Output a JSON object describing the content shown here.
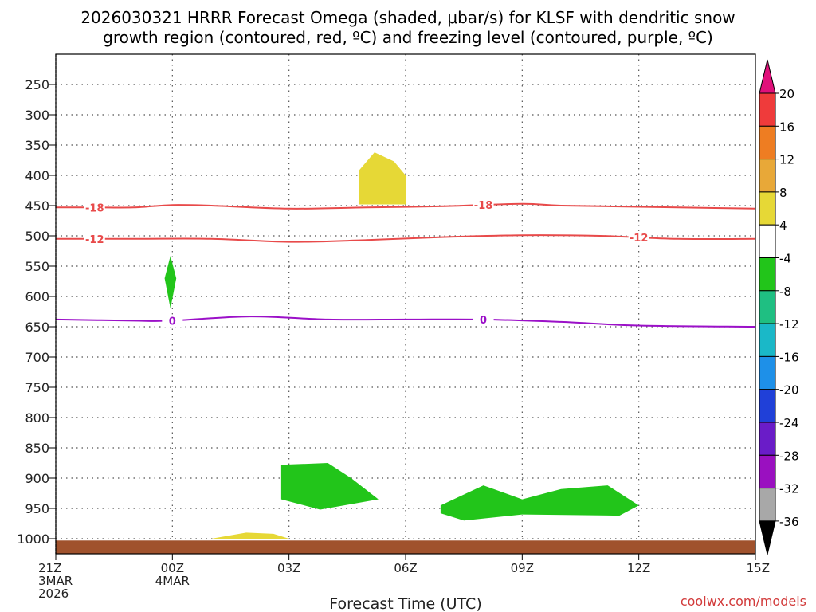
{
  "chart_data": {
    "type": "time-height contour",
    "title_line1": "2026030321 HRRR Forecast Omega (shaded, μbar/s) for KLSF with dendritic snow",
    "title_line2": "growth region (contoured, red, ºC) and freezing level (contoured, purple, ºC)",
    "xlabel": "Forecast Time (UTC)",
    "credit": "coolwx.com/models",
    "x_range_hours": [
      0,
      18
    ],
    "y_range_hpa": [
      200,
      1025
    ],
    "x_ticks": [
      {
        "hour": 0,
        "lines": [
          "21Z",
          "3MAR",
          "2026"
        ]
      },
      {
        "hour": 3,
        "lines": [
          "00Z",
          "4MAR"
        ]
      },
      {
        "hour": 6,
        "lines": [
          "03Z"
        ]
      },
      {
        "hour": 9,
        "lines": [
          "06Z"
        ]
      },
      {
        "hour": 12,
        "lines": [
          "09Z"
        ]
      },
      {
        "hour": 15,
        "lines": [
          "12Z"
        ]
      },
      {
        "hour": 18,
        "lines": [
          "15Z"
        ]
      }
    ],
    "y_ticks": [
      250,
      300,
      350,
      400,
      450,
      500,
      550,
      600,
      650,
      700,
      750,
      800,
      850,
      900,
      950,
      1000
    ],
    "colorbar": {
      "labels": [
        "20",
        "16",
        "12",
        "8",
        "4",
        "-4",
        "-8",
        "-12",
        "-16",
        "-20",
        "-24",
        "-28",
        "-32",
        "-36"
      ],
      "segments": [
        {
          "from": 20,
          "to": 16,
          "color": "#ef3b3b"
        },
        {
          "from": 16,
          "to": 12,
          "color": "#ee7d22"
        },
        {
          "from": 12,
          "to": 8,
          "color": "#e8a838"
        },
        {
          "from": 8,
          "to": 4,
          "color": "#e6d836"
        },
        {
          "from": 4,
          "to": -4,
          "color": "#ffffff"
        },
        {
          "from": -4,
          "to": -8,
          "color": "#22c51a"
        },
        {
          "from": -8,
          "to": -12,
          "color": "#1fbf82"
        },
        {
          "from": -12,
          "to": -16,
          "color": "#1ab8c8"
        },
        {
          "from": -16,
          "to": -20,
          "color": "#1e90e8"
        },
        {
          "from": -20,
          "to": -24,
          "color": "#2040d8"
        },
        {
          "from": -24,
          "to": -28,
          "color": "#6a1cc8"
        },
        {
          "from": -28,
          "to": -32,
          "color": "#9a10c0"
        },
        {
          "from": -32,
          "to": -36,
          "color": "#a8a8a8"
        }
      ],
      "top_arrow_color": "#e0107a",
      "bottom_arrow_color": "#000000"
    },
    "contours": [
      {
        "name": "-18C isotherm",
        "color": "#e84a4a",
        "label": "-18",
        "label_at_hours": [
          1.0,
          11.0
        ],
        "points": [
          [
            0,
            453
          ],
          [
            1,
            453
          ],
          [
            2,
            453
          ],
          [
            3,
            449
          ],
          [
            4,
            450
          ],
          [
            6,
            455
          ],
          [
            8,
            453
          ],
          [
            10,
            451
          ],
          [
            12,
            447
          ],
          [
            13,
            450
          ],
          [
            15,
            452
          ],
          [
            18,
            455
          ]
        ]
      },
      {
        "name": "-12C isotherm",
        "color": "#e84a4a",
        "label": "-12",
        "label_at_hours": [
          1.0,
          15.0
        ],
        "points": [
          [
            0,
            505
          ],
          [
            2,
            505
          ],
          [
            4,
            505
          ],
          [
            6,
            510
          ],
          [
            8,
            507
          ],
          [
            10,
            502
          ],
          [
            12,
            499
          ],
          [
            14,
            500
          ],
          [
            16,
            505
          ],
          [
            18,
            505
          ]
        ]
      },
      {
        "name": "freezing level 0C",
        "color": "#9b10c8",
        "label": "0",
        "label_at_hours": [
          3.0,
          11.0
        ],
        "points": [
          [
            0,
            638
          ],
          [
            2,
            640
          ],
          [
            3,
            640
          ],
          [
            5,
            633
          ],
          [
            7,
            638
          ],
          [
            9,
            638
          ],
          [
            11,
            638
          ],
          [
            13,
            642
          ],
          [
            15,
            648
          ],
          [
            18,
            650
          ]
        ]
      }
    ],
    "shaded_regions": [
      {
        "name": "ascent -4 to -8",
        "color": "#22c51a",
        "points": [
          [
            2.95,
            533
          ],
          [
            3.1,
            570
          ],
          [
            2.95,
            620
          ],
          [
            2.8,
            570
          ]
        ]
      },
      {
        "name": "ascent -4 to -8",
        "color": "#22c51a",
        "points": [
          [
            5.8,
            878
          ],
          [
            7.0,
            875
          ],
          [
            7.6,
            900
          ],
          [
            8.3,
            935
          ],
          [
            6.8,
            952
          ],
          [
            5.8,
            935
          ]
        ]
      },
      {
        "name": "ascent -4 to -8",
        "color": "#22c51a",
        "points": [
          [
            9.9,
            945
          ],
          [
            11.0,
            912
          ],
          [
            12.0,
            935
          ],
          [
            13.0,
            918
          ],
          [
            14.2,
            912
          ],
          [
            15.0,
            945
          ],
          [
            14.5,
            962
          ],
          [
            12.0,
            960
          ],
          [
            10.5,
            970
          ],
          [
            9.9,
            958
          ]
        ]
      },
      {
        "name": "descent 4 to 8",
        "color": "#e6d836",
        "points": [
          [
            8.2,
            362
          ],
          [
            8.7,
            377
          ],
          [
            9.0,
            400
          ],
          [
            9.0,
            448
          ],
          [
            7.8,
            448
          ],
          [
            7.8,
            392
          ]
        ]
      },
      {
        "name": "descent 4 to 8",
        "color": "#e6d836",
        "points": [
          [
            4.0,
            1000
          ],
          [
            4.9,
            990
          ],
          [
            5.6,
            992
          ],
          [
            6.0,
            1000
          ]
        ]
      }
    ]
  }
}
